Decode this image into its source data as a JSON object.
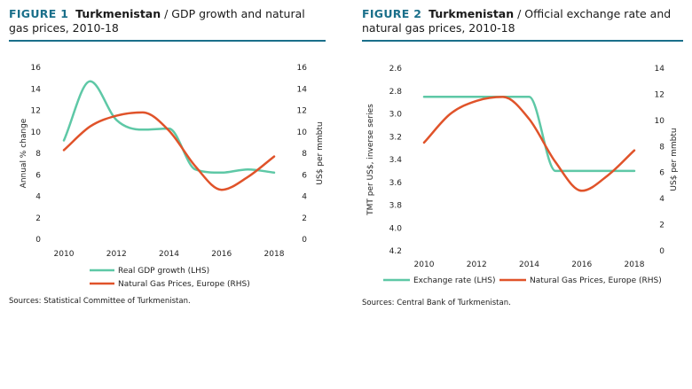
{
  "figure1": {
    "label": "FIGURE 1",
    "country": "Turkmenistan",
    "title_rest": " / GDP growth and natural gas prices, 2010-18",
    "source": "Sources: Statistical Committee of Turkmenistan."
  },
  "figure2": {
    "label": "FIGURE 2",
    "country": "Turkmenistan",
    "title_rest": " / Official exchange rate and natural gas prices, 2010-18",
    "source": "Sources: Central Bank of Turkmenistan."
  },
  "colors": {
    "teal": "#5ec8a6",
    "orange": "#e0532a",
    "rule": "#1a6f8a"
  },
  "chart_data": [
    {
      "type": "line",
      "ylabel": "Annual % change",
      "y2label": "US$ per mmbtu",
      "ylim": [
        0,
        16
      ],
      "y2lim": [
        0,
        16
      ],
      "yticks": [
        "0",
        "2",
        "4",
        "6",
        "8",
        "10",
        "12",
        "14",
        "16"
      ],
      "y2ticks": [
        "0",
        "2",
        "4",
        "6",
        "8",
        "10",
        "12",
        "14",
        "16"
      ],
      "xticks": [
        "2010",
        "2012",
        "2014",
        "2016",
        "2018"
      ],
      "series": [
        {
          "name": "Real GDP growth (LHS)",
          "axis": "left",
          "color": "#5ec8a6",
          "x": [
            2010,
            2011,
            2012,
            2013,
            2014,
            2015,
            2016,
            2017,
            2018
          ],
          "values": [
            9.2,
            14.7,
            11.1,
            10.2,
            10.3,
            6.5,
            6.2,
            6.5,
            6.2
          ]
        },
        {
          "name": "Natural Gas Prices, Europe (RHS)",
          "axis": "right",
          "color": "#e0532a",
          "x": [
            2010,
            2011,
            2012,
            2013,
            2014,
            2015,
            2016,
            2017,
            2018
          ],
          "values": [
            8.3,
            10.5,
            11.5,
            11.8,
            10.1,
            6.8,
            4.6,
            5.8,
            7.7
          ]
        }
      ],
      "legend": "bottom"
    },
    {
      "type": "line",
      "ylabel": "TMT per US$, inverse series",
      "y2label": "US$ per mmbtu",
      "ylim": [
        2.6,
        4.2
      ],
      "y_inverted": true,
      "y2lim": [
        0,
        14
      ],
      "yticks": [
        "2.6",
        "2.8",
        "3.0",
        "3.2",
        "3.4",
        "3.6",
        "3.8",
        "4.0",
        "4.2"
      ],
      "y2ticks": [
        "0",
        "2",
        "4",
        "6",
        "8",
        "10",
        "12",
        "14"
      ],
      "xticks": [
        "2010",
        "2012",
        "2014",
        "2016",
        "2018"
      ],
      "series": [
        {
          "name": "Exchange rate (LHS)",
          "axis": "left",
          "color": "#5ec8a6",
          "x": [
            2010,
            2011,
            2012,
            2013,
            2014,
            2015,
            2016,
            2017,
            2018
          ],
          "values": [
            2.85,
            2.85,
            2.85,
            2.85,
            2.85,
            3.5,
            3.5,
            3.5,
            3.5
          ]
        },
        {
          "name": "Natural Gas Prices, Europe (RHS)",
          "axis": "right",
          "color": "#e0532a",
          "x": [
            2010,
            2011,
            2012,
            2013,
            2014,
            2015,
            2016,
            2017,
            2018
          ],
          "values": [
            8.3,
            10.5,
            11.5,
            11.8,
            10.1,
            6.8,
            4.6,
            5.8,
            7.7
          ]
        }
      ],
      "legend": "bottom"
    }
  ]
}
